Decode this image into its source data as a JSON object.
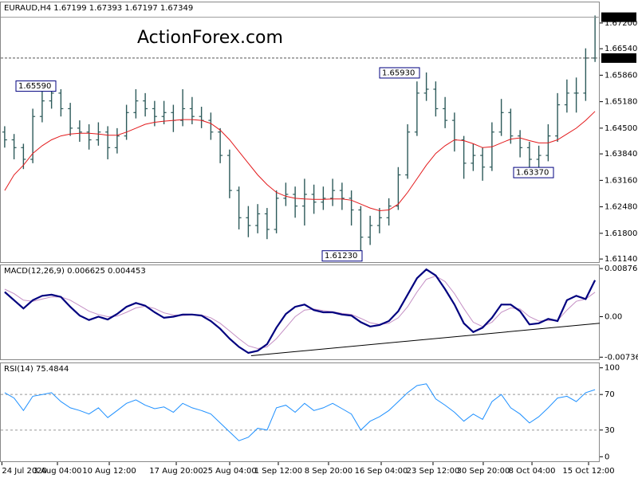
{
  "chart_data": [
    {
      "type": "ohlc",
      "title": "EURAUD,H4  1.67199 1.67393 1.67197 1.67349",
      "watermark": "ActionForex.com",
      "color": "#2d5a5a",
      "open": [
        1.644,
        1.642,
        1.64,
        1.637,
        1.648,
        1.652,
        1.654,
        1.65,
        1.645,
        1.644,
        1.642,
        1.644,
        1.64,
        1.643,
        1.649,
        1.652,
        1.65,
        1.648,
        1.649,
        1.647,
        1.65,
        1.648,
        1.647,
        1.644,
        1.638,
        1.629,
        1.622,
        1.62,
        1.623,
        1.619,
        1.627,
        1.628,
        1.625,
        1.628,
        1.626,
        1.627,
        1.629,
        1.627,
        1.624,
        1.617,
        1.62,
        1.622,
        1.625,
        1.633,
        1.644,
        1.654,
        1.655,
        1.65,
        1.647,
        1.642,
        1.636,
        1.638,
        1.635,
        1.644,
        1.649,
        1.643,
        1.64,
        1.637,
        1.638,
        1.643,
        1.651,
        1.654,
        1.654,
        1.663
      ],
      "high": [
        1.6455,
        1.6435,
        1.641,
        1.65,
        1.6545,
        1.6559,
        1.655,
        1.6515,
        1.647,
        1.646,
        1.6465,
        1.6455,
        1.645,
        1.651,
        1.655,
        1.654,
        1.652,
        1.652,
        1.651,
        1.655,
        1.653,
        1.6505,
        1.649,
        1.645,
        1.6395,
        1.63,
        1.625,
        1.6255,
        1.6245,
        1.629,
        1.631,
        1.63,
        1.632,
        1.6305,
        1.63,
        1.632,
        1.631,
        1.629,
        1.625,
        1.6225,
        1.6245,
        1.627,
        1.635,
        1.646,
        1.657,
        1.6593,
        1.657,
        1.653,
        1.649,
        1.643,
        1.641,
        1.64,
        1.6465,
        1.6525,
        1.65,
        1.6445,
        1.6415,
        1.6405,
        1.646,
        1.654,
        1.6575,
        1.658,
        1.6655,
        1.67393
      ],
      "low": [
        1.64,
        1.637,
        1.6345,
        1.636,
        1.6465,
        1.65,
        1.648,
        1.643,
        1.6415,
        1.6395,
        1.6405,
        1.637,
        1.6385,
        1.642,
        1.6475,
        1.648,
        1.6455,
        1.646,
        1.644,
        1.6455,
        1.646,
        1.645,
        1.642,
        1.636,
        1.627,
        1.619,
        1.617,
        1.618,
        1.6165,
        1.618,
        1.625,
        1.622,
        1.62,
        1.623,
        1.624,
        1.625,
        1.624,
        1.62,
        1.6123,
        1.615,
        1.618,
        1.62,
        1.624,
        1.632,
        1.643,
        1.652,
        1.648,
        1.645,
        1.639,
        1.632,
        1.634,
        1.6315,
        1.634,
        1.643,
        1.641,
        1.6375,
        1.6337,
        1.6345,
        1.6365,
        1.6415,
        1.649,
        1.649,
        1.652,
        1.662
      ],
      "close": [
        1.642,
        1.64,
        1.637,
        1.648,
        1.652,
        1.654,
        1.65,
        1.645,
        1.644,
        1.642,
        1.644,
        1.64,
        1.643,
        1.649,
        1.652,
        1.65,
        1.648,
        1.649,
        1.647,
        1.65,
        1.648,
        1.647,
        1.644,
        1.638,
        1.629,
        1.622,
        1.62,
        1.623,
        1.619,
        1.627,
        1.628,
        1.625,
        1.628,
        1.626,
        1.627,
        1.629,
        1.627,
        1.624,
        1.617,
        1.62,
        1.622,
        1.625,
        1.633,
        1.644,
        1.654,
        1.655,
        1.65,
        1.647,
        1.642,
        1.636,
        1.638,
        1.635,
        1.644,
        1.649,
        1.643,
        1.64,
        1.637,
        1.638,
        1.643,
        1.651,
        1.654,
        1.654,
        1.663,
        1.67349
      ],
      "moving_average": {
        "color": "#e31a1c",
        "values": [
          1.629,
          1.633,
          1.6355,
          1.6385,
          1.6405,
          1.642,
          1.643,
          1.6435,
          1.6437,
          1.6437,
          1.6435,
          1.6432,
          1.6432,
          1.644,
          1.645,
          1.646,
          1.6465,
          1.6468,
          1.647,
          1.6472,
          1.6472,
          1.647,
          1.6462,
          1.6445,
          1.642,
          1.639,
          1.636,
          1.633,
          1.6305,
          1.6285,
          1.6275,
          1.627,
          1.6268,
          1.6267,
          1.6267,
          1.6268,
          1.6268,
          1.6265,
          1.6255,
          1.6245,
          1.6238,
          1.624,
          1.6255,
          1.6285,
          1.632,
          1.6355,
          1.6385,
          1.6405,
          1.642,
          1.6418,
          1.641,
          1.64,
          1.6402,
          1.6412,
          1.6422,
          1.6425,
          1.6418,
          1.6412,
          1.6412,
          1.642,
          1.6435,
          1.645,
          1.647,
          1.6493
        ]
      },
      "price_markers": [
        {
          "value": 1.67349,
          "label": "1.67349"
        },
        {
          "value": 1.663,
          "label": "1.66300"
        }
      ],
      "annotations": [
        {
          "value": 1.6559,
          "label": "1.65590"
        },
        {
          "value": 1.6593,
          "label": "1.65930"
        },
        {
          "value": 1.6123,
          "label": "1.61230"
        },
        {
          "value": 1.6337,
          "label": "1.63370"
        }
      ],
      "xlim": [
        -0.5,
        63.5
      ],
      "ylim": [
        1.6104,
        1.6775
      ],
      "yticks": [
        {
          "value": 1.672,
          "label": "1.67200"
        },
        {
          "value": 1.6654,
          "label": "1.66540"
        },
        {
          "value": 1.6586,
          "label": "1.65860"
        },
        {
          "value": 1.6518,
          "label": "1.65180"
        },
        {
          "value": 1.645,
          "label": "1.64500"
        },
        {
          "value": 1.6384,
          "label": "1.63840"
        },
        {
          "value": 1.6316,
          "label": "1.63160"
        },
        {
          "value": 1.6248,
          "label": "1.62480"
        },
        {
          "value": 1.618,
          "label": "1.61800"
        },
        {
          "value": 1.6114,
          "label": "1.61140"
        }
      ]
    },
    {
      "type": "line",
      "title": "MACD(12,26,9) 0.006625 0.004453",
      "series": [
        {
          "color": "#00007f",
          "values": [
            0.0045,
            0.003,
            0.0015,
            0.003,
            0.0038,
            0.004,
            0.0036,
            0.0018,
            0.0002,
            -0.0006,
            0.0,
            -0.0005,
            0.0005,
            0.0018,
            0.0025,
            0.002,
            0.0008,
            -0.0002,
            0.0,
            0.0004,
            0.0004,
            0.0002,
            -0.0008,
            -0.0022,
            -0.004,
            -0.0055,
            -0.0066,
            -0.0062,
            -0.005,
            -0.002,
            0.0005,
            0.0018,
            0.0022,
            0.0012,
            0.0008,
            0.0008,
            0.0004,
            0.0002,
            -0.001,
            -0.0018,
            -0.0015,
            -0.0008,
            0.001,
            0.004,
            0.007,
            0.0086,
            0.0075,
            0.005,
            0.0022,
            -0.0012,
            -0.0028,
            -0.002,
            -0.0002,
            0.0022,
            0.0022,
            0.001,
            -0.0014,
            -0.0012,
            -0.0004,
            -0.0008,
            0.003,
            0.0038,
            0.0032,
            0.006625
          ]
        },
        {
          "color": "#c48fc4",
          "values": [
            0.005,
            0.0042,
            0.003,
            0.0028,
            0.0032,
            0.0036,
            0.0036,
            0.003,
            0.002,
            0.001,
            0.0004,
            0.0,
            0.0001,
            0.0008,
            0.0016,
            0.0019,
            0.0015,
            0.0007,
            0.0003,
            0.0002,
            0.0003,
            0.0003,
            -0.0002,
            -0.0012,
            -0.0026,
            -0.004,
            -0.0053,
            -0.0058,
            -0.0055,
            -0.004,
            -0.002,
            0.0,
            0.0012,
            0.0014,
            0.0011,
            0.0009,
            0.0006,
            0.0004,
            -0.0003,
            -0.0011,
            -0.0014,
            -0.0012,
            -0.0002,
            0.0018,
            0.0045,
            0.0068,
            0.0074,
            0.0064,
            0.0042,
            0.0015,
            -0.001,
            -0.0018,
            -0.001,
            0.0008,
            0.0016,
            0.0014,
            0.0,
            -0.0008,
            -0.0007,
            -0.0007,
            0.0012,
            0.0028,
            0.0032,
            0.004453
          ]
        }
      ],
      "trendline": {
        "color": "#000000",
        "x": [
          26.3,
          63.5
        ],
        "values": [
          -0.0071,
          -0.0012
        ]
      },
      "xlim": [
        -0.5,
        63.5
      ],
      "ylim": [
        -0.0079,
        0.0095
      ],
      "yticks": [
        0.008761,
        {
          "value": 0,
          "label": "0.00"
        },
        -0.007367
      ]
    },
    {
      "type": "line",
      "title": "RSI(14) 75.4844",
      "series": [
        {
          "color": "#1e90ff",
          "values": [
            72,
            66,
            52,
            68,
            70,
            72,
            62,
            55,
            52,
            48,
            55,
            44,
            52,
            60,
            64,
            58,
            54,
            56,
            50,
            60,
            55,
            52,
            48,
            38,
            28,
            18,
            22,
            32,
            30,
            55,
            58,
            50,
            60,
            52,
            55,
            60,
            54,
            48,
            30,
            40,
            45,
            52,
            62,
            72,
            80,
            82,
            65,
            58,
            50,
            40,
            48,
            42,
            62,
            70,
            55,
            48,
            38,
            45,
            55,
            66,
            68,
            62,
            72,
            75.4844
          ]
        }
      ],
      "levels": [
        70,
        30
      ],
      "xlim": [
        -0.5,
        63.5
      ],
      "ylim": [
        -6,
        106
      ],
      "yticks": [
        100,
        70,
        30,
        0
      ],
      "xticks": [
        {
          "value": -0.3,
          "label": "24 Jul 2020"
        },
        {
          "value": 5.63,
          "label": "3 Aug 04:00"
        },
        {
          "value": 11.16,
          "label": "10 Aug 12:00"
        },
        {
          "value": 18.31,
          "label": "17 Aug 20:00"
        },
        {
          "value": 24.01,
          "label": "25 Aug 04:00"
        },
        {
          "value": 29.2,
          "label": "1 Sep 12:00"
        },
        {
          "value": 34.56,
          "label": "8 Sep 20:00"
        },
        {
          "value": 40.18,
          "label": "16 Sep 04:00"
        },
        {
          "value": 45.71,
          "label": "23 Sep 12:00"
        },
        {
          "value": 51.07,
          "label": "30 Sep 20:00"
        },
        {
          "value": 56.27,
          "label": "8 Oct 04:00"
        },
        {
          "value": 62.31,
          "label": "15 Oct 12:00"
        }
      ]
    }
  ]
}
